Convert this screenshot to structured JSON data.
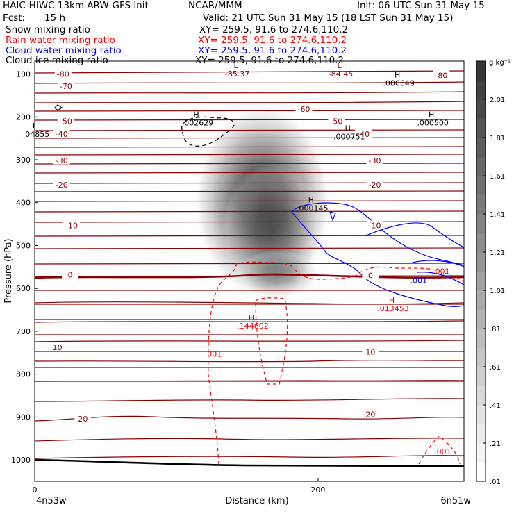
{
  "header": {
    "title": "HAIC-HIWC 13km ARW-GFS init",
    "org": "NCAR/MMM",
    "init": "Init: 06 UTC Sun 31 May 15",
    "fcst_label": "Fcst:",
    "fcst_value": "15 h",
    "valid": "Valid: 21 UTC Sun 31 May 15 (18 LST Sun 31 May 15)"
  },
  "fields": [
    {
      "name": "Snow mixing ratio",
      "xy": "XY= 259.5, 91.6 to 274.6,110.2",
      "color": "#000000"
    },
    {
      "name": "Rain water mixing ratio",
      "xy": "XY= 259.5, 91.6 to 274.6,110.2",
      "color": "#ff0000"
    },
    {
      "name": "Cloud water mixing ratio",
      "xy": "XY= 259.5, 91.6 to 274.6,110.2",
      "color": "#0000ff"
    },
    {
      "name": "Cloud ice mixing ratio",
      "xy": "XY= 259.5, 91.6 to 274.6,110.2",
      "color": "#000000"
    }
  ],
  "chart_data": {
    "type": "heatmap",
    "xlabel": "Distance (km)",
    "ylabel": "Pressure (hPa)",
    "xlim": [
      0,
      303
    ],
    "ylim": [
      1050,
      70
    ],
    "x_ticks": [
      "0",
      "200"
    ],
    "x_tick_values": [
      0,
      200
    ],
    "y_ticks": [
      "100",
      "200",
      "300",
      "400",
      "500",
      "600",
      "700",
      "800",
      "900",
      "1000"
    ],
    "y_tick_values": [
      100,
      200,
      300,
      400,
      500,
      600,
      700,
      800,
      900,
      1000
    ],
    "left_endpoint": "4n53w",
    "right_endpoint": "6n51w",
    "colorbar": {
      "unit": "g kg⁻¹",
      "ticks": [
        "2.01",
        "1.81",
        "1.61",
        "1.41",
        "1.21",
        "1.01",
        ".81",
        ".61",
        ".41",
        ".21",
        ".01"
      ],
      "tick_values": [
        2.01,
        1.81,
        1.61,
        1.41,
        1.21,
        1.01,
        0.81,
        0.61,
        0.41,
        0.21,
        0.01
      ],
      "range": [
        0.01,
        2.21
      ]
    },
    "snow_core": {
      "x_km": 166,
      "p_hpa": 310,
      "max_g_kg": 2.0
    },
    "temperature_labels": [
      {
        "text": "-80",
        "x": 20,
        "p": 100
      },
      {
        "text": "-80",
        "x": 287,
        "p": 103
      },
      {
        "text": "-70",
        "x": 22,
        "p": 128
      },
      {
        "text": "-60",
        "x": 190,
        "p": 182
      },
      {
        "text": "-50",
        "x": 22,
        "p": 210
      },
      {
        "text": "-50",
        "x": 213,
        "p": 210
      },
      {
        "text": "-40",
        "x": 19,
        "p": 240
      },
      {
        "text": "-40",
        "x": 232,
        "p": 240
      },
      {
        "text": "-30",
        "x": 19,
        "p": 302
      },
      {
        "text": "-30",
        "x": 240,
        "p": 302
      },
      {
        "text": "-20",
        "x": 19,
        "p": 358
      },
      {
        "text": "-20",
        "x": 240,
        "p": 358
      },
      {
        "text": "-10",
        "x": 26,
        "p": 453
      },
      {
        "text": "-10",
        "x": 240,
        "p": 453
      },
      {
        "text": "0",
        "x": 25,
        "p": 568
      },
      {
        "text": "0",
        "x": 237,
        "p": 570
      },
      {
        "text": "10",
        "x": 16,
        "p": 737
      },
      {
        "text": "10",
        "x": 237,
        "p": 748
      },
      {
        "text": "20",
        "x": 34,
        "p": 904
      },
      {
        "text": "20",
        "x": 237,
        "p": 894
      }
    ],
    "extrema": [
      {
        "kind": "L",
        "value": "-85.37",
        "x": 142,
        "p": 86,
        "color": "#8b0000"
      },
      {
        "kind": "L",
        "value": "-84.45",
        "x": 215,
        "p": 86,
        "color": "#8b0000"
      },
      {
        "kind": "H",
        "value": ".000649",
        "x": 256,
        "p": 108,
        "color": "#000000"
      },
      {
        "kind": "H",
        "value": ".002629",
        "x": 114,
        "p": 200,
        "color": "#000000"
      },
      {
        "kind": "L",
        "value": ".04855",
        "x": 0,
        "p": 227,
        "color": "#000000"
      },
      {
        "kind": "H",
        "value": ".000751",
        "x": 221,
        "p": 233,
        "color": "#000000"
      },
      {
        "kind": "H",
        "value": ".000500",
        "x": 280,
        "p": 200,
        "color": "#000000"
      },
      {
        "kind": "H",
        "value": ".000145",
        "x": 195,
        "p": 400,
        "color": "#000000"
      },
      {
        "kind": "H",
        "value": ".144602",
        "x": 153,
        "p": 674,
        "color": "#ff0000"
      },
      {
        "kind": "H",
        "value": ".013453",
        "x": 252,
        "p": 634,
        "color": "#ff0000"
      }
    ],
    "contour_labels": [
      {
        "text": ".001",
        "x": 126,
        "p": 753,
        "color": "#ff0000"
      },
      {
        "text": ".001",
        "x": 271,
        "p": 581,
        "color": "#0000ff"
      },
      {
        "text": ".001",
        "x": 287,
        "p": 560,
        "color": "#ff0000"
      },
      {
        "text": ".001",
        "x": 288,
        "p": 980,
        "color": "#ff0000"
      }
    ]
  }
}
